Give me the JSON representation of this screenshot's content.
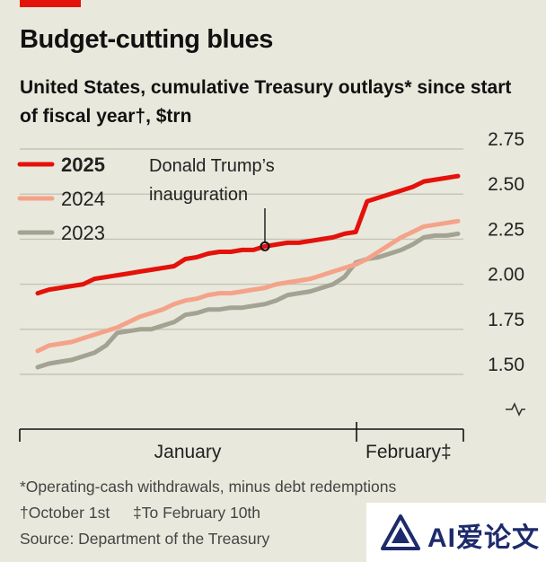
{
  "header": {
    "title": "Budget-cutting blues",
    "subtitle": "United States, cumulative Treasury outlays* since start of fiscal year†, $trn"
  },
  "legend": [
    {
      "label": "2025",
      "color": "#e3120b",
      "bold": true
    },
    {
      "label": "2024",
      "color": "#f4a38a",
      "bold": false
    },
    {
      "label": "2023",
      "color": "#a3a394",
      "bold": false
    }
  ],
  "annotation": {
    "text_line1": "Donald Trump’s",
    "text_line2": "inauguration"
  },
  "x_axis": {
    "labels": [
      "January",
      "February‡"
    ]
  },
  "footnotes": {
    "line1": "*Operating-cash withdrawals, minus debt redemptions",
    "line2a": "†October 1st",
    "line2b": "‡To February 10th",
    "source": "Source: Department of the Treasury"
  },
  "watermark": {
    "text": "AI爱论文"
  },
  "chart_data": {
    "type": "line",
    "title": "Budget-cutting blues",
    "subtitle": "United States, cumulative Treasury outlays* since start of fiscal year†, $trn",
    "xlabel": "",
    "ylabel": "",
    "x_labels": [
      "January",
      "February‡"
    ],
    "ylim": [
      1.5,
      2.75
    ],
    "yticks": [
      1.5,
      1.75,
      2.0,
      2.25,
      2.5,
      2.75
    ],
    "ytick_labels": [
      "1.50",
      "1.75",
      "2.00",
      "2.25",
      "2.50",
      "2.75"
    ],
    "y_axis_break": true,
    "grid": true,
    "legend_position": "top-left",
    "series": [
      {
        "name": "2025",
        "color": "#e3120b",
        "values": [
          1.95,
          1.97,
          1.98,
          1.99,
          2.0,
          2.03,
          2.04,
          2.05,
          2.06,
          2.07,
          2.08,
          2.09,
          2.1,
          2.14,
          2.15,
          2.17,
          2.18,
          2.18,
          2.19,
          2.19,
          2.21,
          2.22,
          2.23,
          2.23,
          2.24,
          2.25,
          2.26,
          2.28,
          2.29,
          2.46,
          2.48,
          2.5,
          2.52,
          2.54,
          2.57,
          2.58,
          2.59,
          2.6
        ]
      },
      {
        "name": "2024",
        "color": "#f4a38a",
        "values": [
          1.63,
          1.66,
          1.67,
          1.68,
          1.7,
          1.72,
          1.74,
          1.76,
          1.79,
          1.82,
          1.84,
          1.86,
          1.89,
          1.91,
          1.92,
          1.94,
          1.95,
          1.95,
          1.96,
          1.97,
          1.98,
          2.0,
          2.01,
          2.02,
          2.03,
          2.05,
          2.07,
          2.09,
          2.11,
          2.14,
          2.18,
          2.22,
          2.26,
          2.29,
          2.32,
          2.33,
          2.34,
          2.35
        ]
      },
      {
        "name": "2023",
        "color": "#a3a394",
        "values": [
          1.54,
          1.56,
          1.57,
          1.58,
          1.6,
          1.62,
          1.66,
          1.73,
          1.74,
          1.75,
          1.75,
          1.77,
          1.79,
          1.83,
          1.84,
          1.86,
          1.86,
          1.87,
          1.87,
          1.88,
          1.89,
          1.91,
          1.94,
          1.95,
          1.96,
          1.98,
          2.0,
          2.04,
          2.12,
          2.14,
          2.15,
          2.17,
          2.19,
          2.22,
          2.26,
          2.27,
          2.27,
          2.28
        ]
      }
    ],
    "annotation": {
      "label": "Donald Trump’s inauguration",
      "series": "2025",
      "index": 20
    }
  }
}
